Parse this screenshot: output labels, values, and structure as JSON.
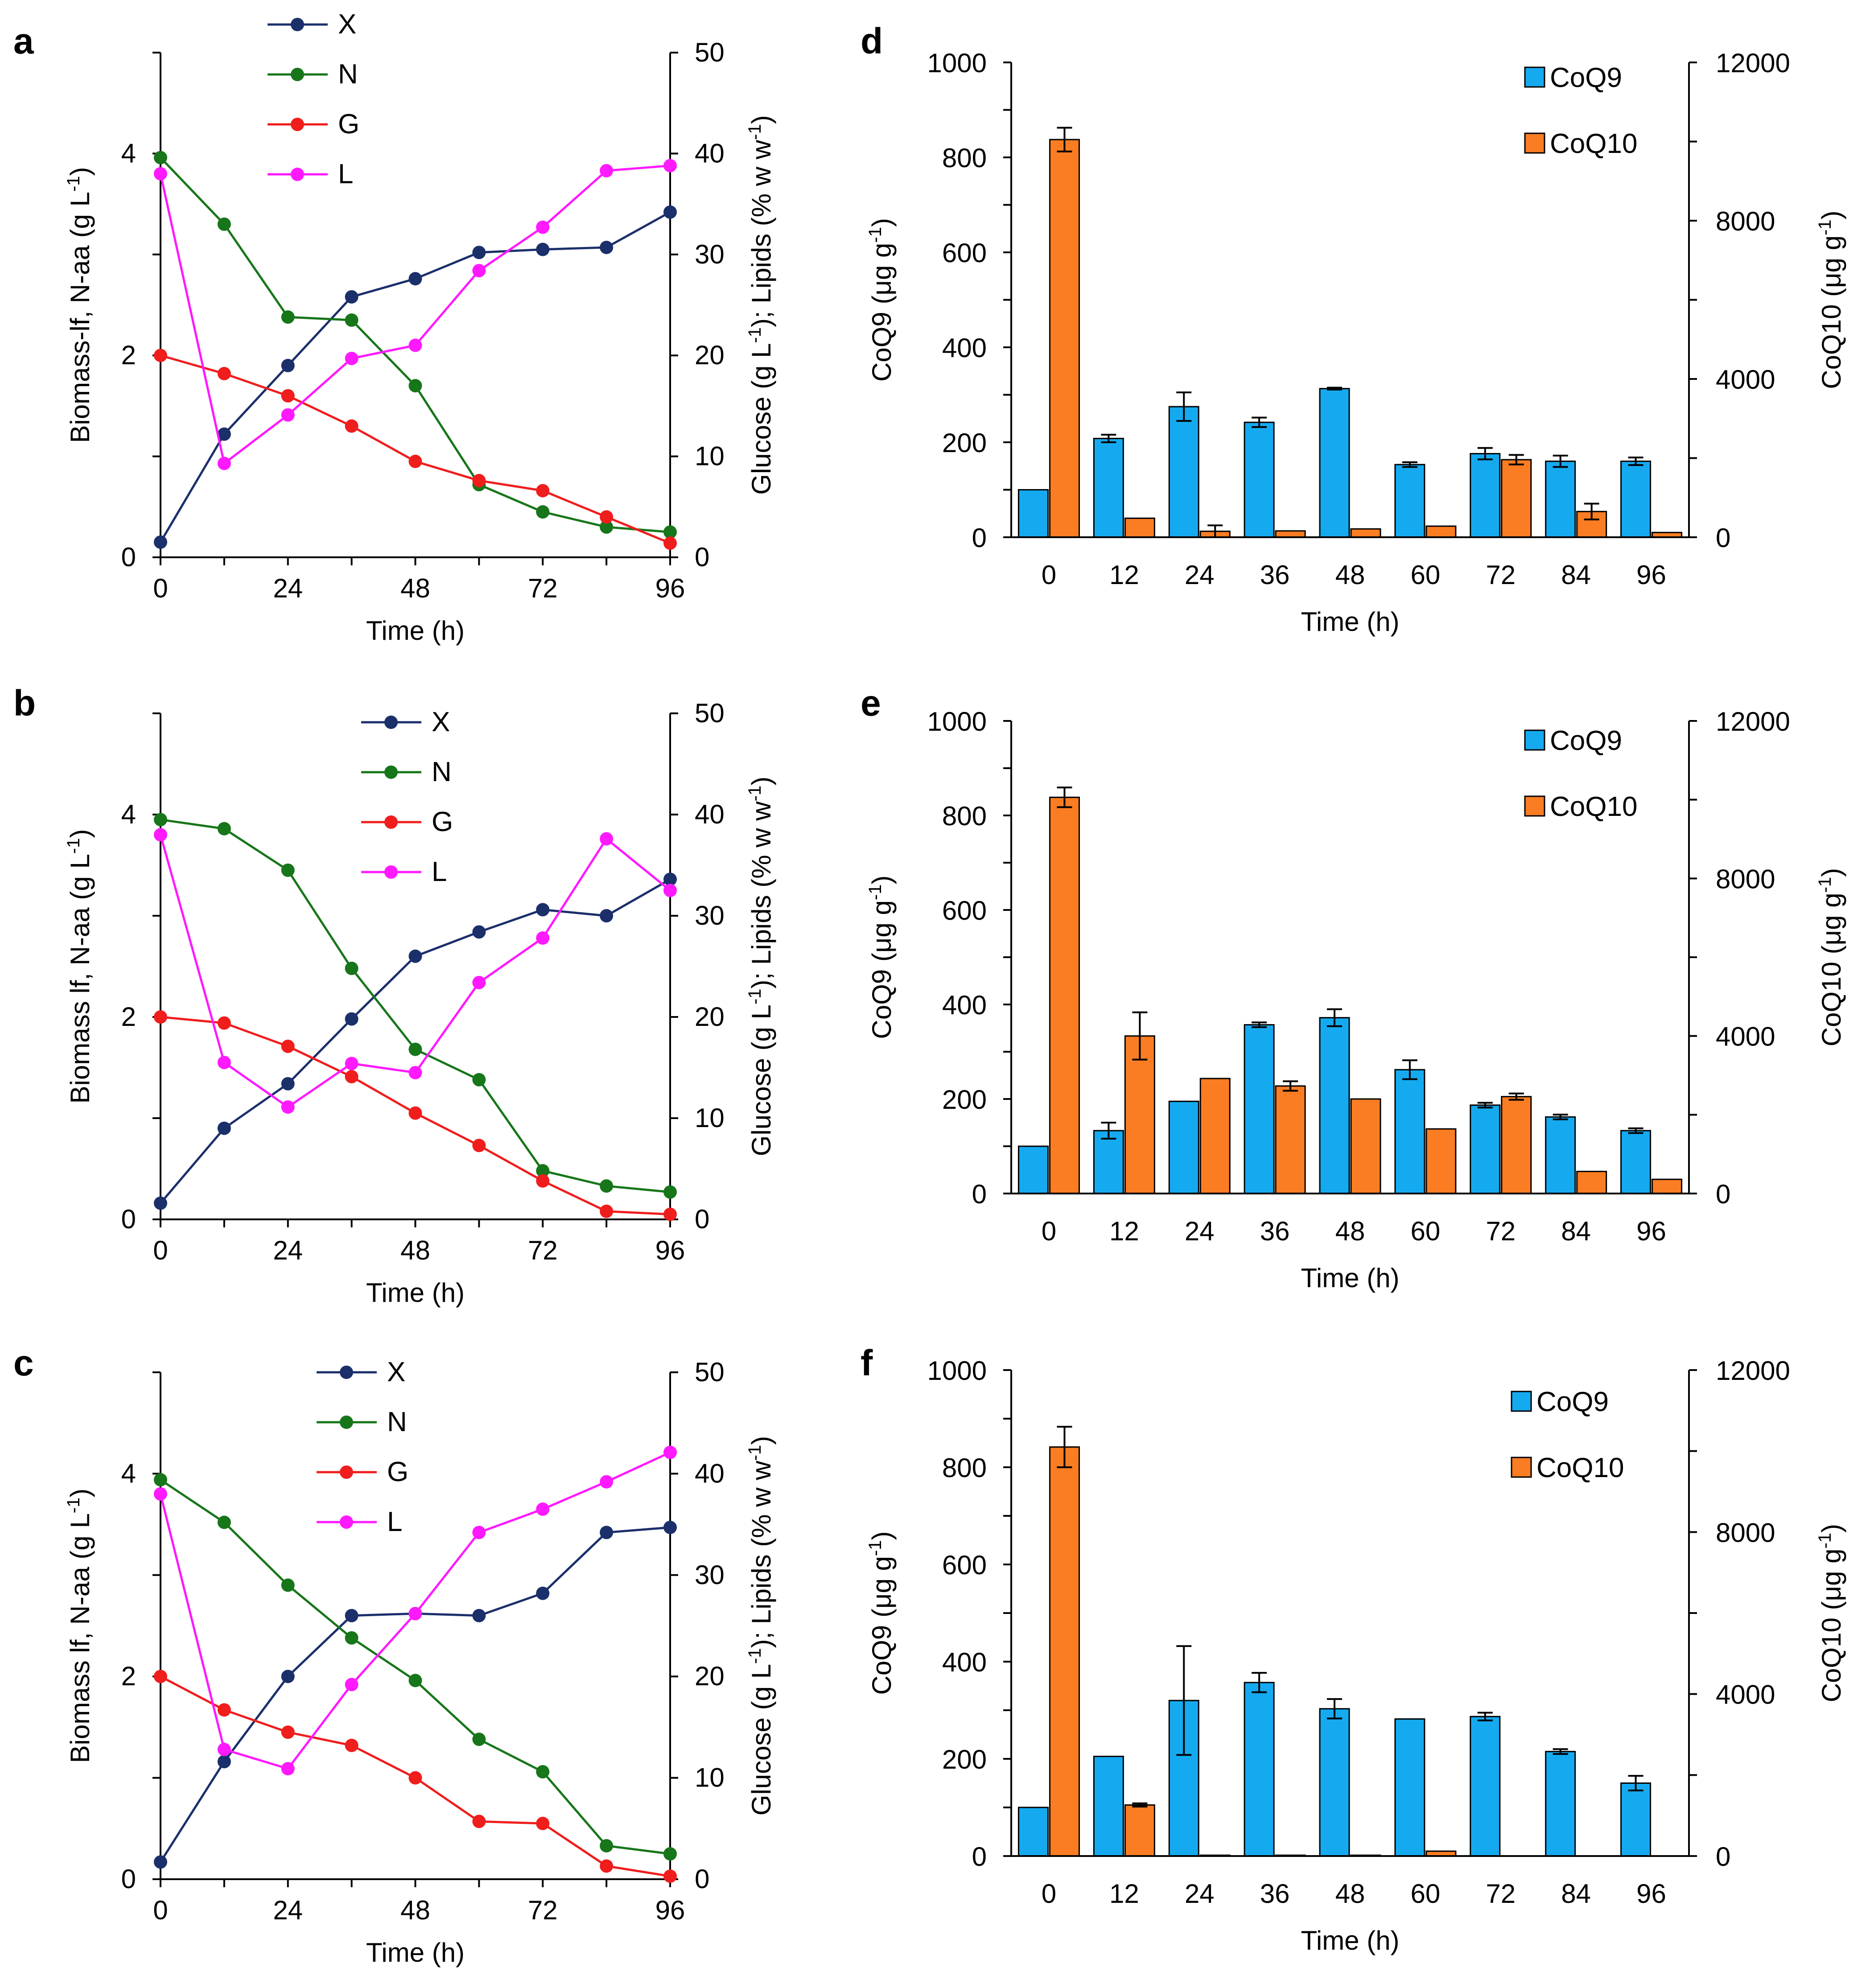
{
  "figure": {
    "panel_labels": [
      "a",
      "b",
      "c",
      "d",
      "e",
      "f"
    ]
  },
  "colors": {
    "X": "#1b2f6b",
    "N": "#17761a",
    "G": "#f01d1d",
    "L": "#ff19ff",
    "CoQ9": "#15aaf0",
    "CoQ10": "#fa7d23",
    "bar_edge": "#000000"
  },
  "chart_data": [
    {
      "panel": "a",
      "type": "line",
      "xlabel": "Time (h)",
      "ylabel_left": "Biomass-lf, N-aa (g L-1)",
      "ylabel_left_parts": [
        "Biomass-lf, N-aa (g L",
        "-1",
        ")"
      ],
      "ylabel_right": "Glucose (g L-1); Lipids (% w w-1)",
      "ylabel_right_parts": [
        "Glucose (g L",
        "-1",
        "); Lipids (% w w",
        "-1",
        ")"
      ],
      "x": [
        0,
        12,
        24,
        36,
        48,
        60,
        72,
        84,
        96
      ],
      "xticks": [
        0,
        24,
        48,
        72,
        96
      ],
      "ylim_left": [
        0,
        5
      ],
      "yticks_left": [
        0,
        2,
        4
      ],
      "ylim_right": [
        0,
        50
      ],
      "yticks_right": [
        0,
        10,
        20,
        30,
        40,
        50
      ],
      "series": [
        {
          "name": "X",
          "axis": "left",
          "values": [
            0.15,
            1.22,
            1.9,
            2.58,
            2.76,
            3.02,
            3.05,
            3.07,
            3.42
          ]
        },
        {
          "name": "N",
          "axis": "left",
          "values": [
            3.96,
            3.3,
            2.38,
            2.35,
            1.7,
            0.72,
            0.45,
            0.3,
            0.25
          ]
        },
        {
          "name": "G",
          "axis": "right",
          "values": [
            20,
            18.2,
            16,
            13,
            9.5,
            7.6,
            6.6,
            4,
            1.4
          ]
        },
        {
          "name": "L",
          "axis": "right",
          "values": [
            38,
            9.3,
            14.1,
            19.7,
            21,
            28.4,
            32.7,
            38.3,
            38.8
          ]
        }
      ],
      "legend": [
        "X",
        "N",
        "G",
        "L"
      ]
    },
    {
      "panel": "b",
      "type": "line",
      "xlabel": "Time (h)",
      "ylabel_left": "Biomass lf, N-aa (g L-1)",
      "ylabel_left_parts": [
        "Biomass lf, N-aa (g L",
        "-1",
        ")"
      ],
      "ylabel_right": "Glucose (g L-1); Lipids (% w w-1)",
      "ylabel_right_parts": [
        "Glucose (g L",
        "-1",
        "); Lipids (% w w",
        "-1",
        ")"
      ],
      "x": [
        0,
        12,
        24,
        36,
        48,
        60,
        72,
        84,
        96
      ],
      "xticks": [
        0,
        24,
        48,
        72,
        96
      ],
      "ylim_left": [
        0,
        5
      ],
      "yticks_left": [
        0,
        2,
        4
      ],
      "ylim_right": [
        0,
        50
      ],
      "yticks_right": [
        0,
        10,
        20,
        30,
        40,
        50
      ],
      "series": [
        {
          "name": "X",
          "axis": "left",
          "values": [
            0.16,
            0.9,
            1.34,
            1.98,
            2.6,
            2.84,
            3.06,
            3.0,
            3.36
          ]
        },
        {
          "name": "N",
          "axis": "left",
          "values": [
            3.95,
            3.86,
            3.45,
            2.48,
            1.68,
            1.38,
            0.48,
            0.33,
            0.27
          ]
        },
        {
          "name": "G",
          "axis": "right",
          "values": [
            20,
            19.4,
            17.1,
            14.1,
            10.5,
            7.3,
            3.8,
            0.8,
            0.5
          ]
        },
        {
          "name": "L",
          "axis": "right",
          "values": [
            38,
            15.5,
            11.1,
            15.4,
            14.5,
            23.4,
            27.8,
            37.6,
            32.5
          ]
        }
      ],
      "legend": [
        "X",
        "N",
        "G",
        "L"
      ]
    },
    {
      "panel": "c",
      "type": "line",
      "xlabel": "Time (h)",
      "ylabel_left": "Biomass lf, N-aa (g L-1)",
      "ylabel_left_parts": [
        "Biomass lf, N-aa (g L",
        "-1",
        ")"
      ],
      "ylabel_right": "Glucose (g L-1); Lipids (% w w-1)",
      "ylabel_right_parts": [
        "Glucose (g L",
        "-1",
        "); Lipids (% w w",
        "-1",
        ")"
      ],
      "x": [
        0,
        12,
        24,
        36,
        48,
        60,
        72,
        84,
        96
      ],
      "xticks": [
        0,
        24,
        48,
        72,
        96
      ],
      "ylim_left": [
        0,
        5
      ],
      "yticks_left": [
        0,
        2,
        4
      ],
      "ylim_right": [
        0,
        50
      ],
      "yticks_right": [
        0,
        10,
        20,
        30,
        40,
        50
      ],
      "series": [
        {
          "name": "X",
          "axis": "left",
          "values": [
            0.17,
            1.16,
            2.0,
            2.6,
            2.62,
            2.6,
            2.82,
            3.42,
            3.47
          ]
        },
        {
          "name": "N",
          "axis": "left",
          "values": [
            3.94,
            3.52,
            2.9,
            2.38,
            1.96,
            1.38,
            1.06,
            0.33,
            0.25
          ]
        },
        {
          "name": "G",
          "axis": "right",
          "values": [
            20,
            16.7,
            14.5,
            13.2,
            10,
            5.7,
            5.5,
            1.3,
            0.3
          ]
        },
        {
          "name": "L",
          "axis": "right",
          "values": [
            38,
            12.8,
            10.9,
            19.2,
            26.2,
            34.2,
            36.5,
            39.2,
            42.1
          ]
        }
      ],
      "legend": [
        "X",
        "N",
        "G",
        "L"
      ]
    },
    {
      "panel": "d",
      "type": "bar",
      "xlabel": "Time (h)",
      "ylabel_left": "CoQ9 (μg g-1)",
      "ylabel_left_parts": [
        "CoQ9 (μg g",
        "-1",
        ")"
      ],
      "ylabel_right": "CoQ10 (μg g-1)",
      "ylabel_right_parts": [
        "CoQ10 (μg g",
        "-1",
        ")"
      ],
      "categories": [
        "0",
        "12",
        "24",
        "36",
        "48",
        "60",
        "72",
        "84",
        "96"
      ],
      "ylim_left": [
        0,
        1000
      ],
      "yticks_left": [
        0,
        200,
        400,
        600,
        800,
        1000
      ],
      "ylim_right": [
        0,
        12000
      ],
      "yticks_right": [
        0,
        4000,
        8000,
        12000
      ],
      "series": [
        {
          "name": "CoQ9",
          "axis": "left",
          "values": [
            100,
            208,
            275,
            242,
            313,
            153,
            176,
            160,
            160
          ],
          "errors": [
            0,
            8,
            30,
            10,
            2,
            5,
            12,
            12,
            8
          ]
        },
        {
          "name": "CoQ10",
          "axis": "right",
          "values": [
            10050,
            480,
            150,
            160,
            210,
            280,
            1960,
            650,
            120
          ],
          "errors": [
            300,
            0,
            150,
            0,
            0,
            0,
            120,
            200,
            0
          ]
        }
      ],
      "legend": [
        "CoQ9",
        "CoQ10"
      ]
    },
    {
      "panel": "e",
      "type": "bar",
      "xlabel": "Time (h)",
      "ylabel_left": "CoQ9 (μg g-1)",
      "ylabel_left_parts": [
        "CoQ9 (μg g",
        "-1",
        ")"
      ],
      "ylabel_right": "CoQ10 (μg g-1)",
      "ylabel_right_parts": [
        "CoQ10 (μg g",
        "-1",
        ")"
      ],
      "categories": [
        "0",
        "12",
        "24",
        "36",
        "48",
        "60",
        "72",
        "84",
        "96"
      ],
      "ylim_left": [
        0,
        1000
      ],
      "yticks_left": [
        0,
        200,
        400,
        600,
        800,
        1000
      ],
      "ylim_right": [
        0,
        12000
      ],
      "yticks_right": [
        0,
        4000,
        8000,
        12000
      ],
      "series": [
        {
          "name": "CoQ9",
          "axis": "left",
          "values": [
            100,
            133,
            195,
            357,
            372,
            262,
            187,
            162,
            133
          ],
          "errors": [
            0,
            17,
            0,
            5,
            18,
            20,
            5,
            5,
            5
          ]
        },
        {
          "name": "CoQ10",
          "axis": "right",
          "values": [
            10060,
            4000,
            2920,
            2730,
            2400,
            1640,
            2460,
            560,
            360
          ],
          "errors": [
            250,
            600,
            0,
            120,
            0,
            0,
            80,
            0,
            0
          ]
        }
      ],
      "legend": [
        "CoQ9",
        "CoQ10"
      ]
    },
    {
      "panel": "f",
      "type": "bar",
      "xlabel": "Time (h)",
      "ylabel_left": "CoQ9 (μg g-1)",
      "ylabel_left_parts": [
        "CoQ9 (μg g",
        "-1",
        ")"
      ],
      "ylabel_right": "CoQ10 (μg g-1)",
      "ylabel_right_parts": [
        "CoQ10 (μg g",
        "-1",
        ")"
      ],
      "categories": [
        "0",
        "12",
        "24",
        "36",
        "48",
        "60",
        "72",
        "84",
        "96"
      ],
      "ylim_left": [
        0,
        1000
      ],
      "yticks_left": [
        0,
        200,
        400,
        600,
        800,
        1000
      ],
      "ylim_right": [
        0,
        12000
      ],
      "yticks_right": [
        0,
        4000,
        8000,
        12000
      ],
      "series": [
        {
          "name": "CoQ9",
          "axis": "left",
          "values": [
            100,
            205,
            320,
            357,
            303,
            282,
            287,
            215,
            150
          ],
          "errors": [
            0,
            0,
            112,
            20,
            20,
            0,
            8,
            5,
            15
          ]
        },
        {
          "name": "CoQ10",
          "axis": "right",
          "values": [
            10100,
            1260,
            20,
            20,
            20,
            120,
            0,
            0,
            0
          ],
          "errors": [
            500,
            40,
            0,
            0,
            0,
            0,
            0,
            0,
            0
          ]
        }
      ],
      "legend": [
        "CoQ9",
        "CoQ10"
      ]
    }
  ]
}
